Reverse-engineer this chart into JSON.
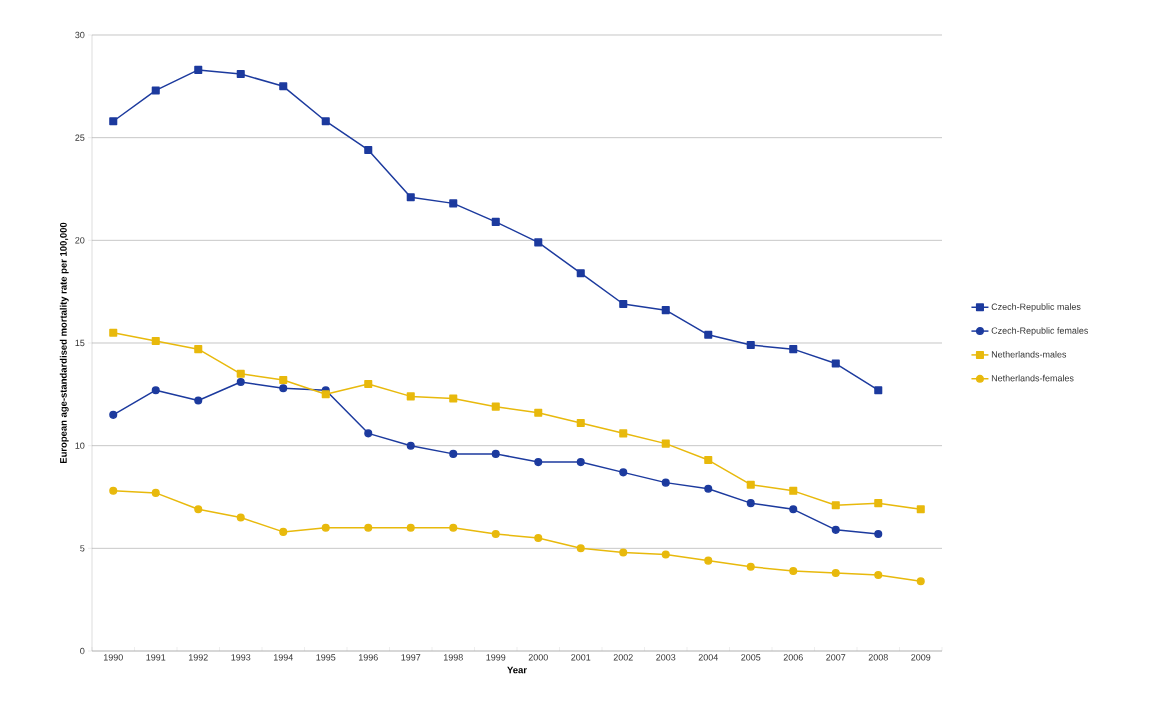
{
  "chart_data": {
    "type": "line",
    "xlabel": "Year",
    "ylabel": "European age-standardised mortality rate per 100,000",
    "categories": [
      "1990",
      "1991",
      "1992",
      "1993",
      "1994",
      "1995",
      "1996",
      "1997",
      "1998",
      "1999",
      "2000",
      "2001",
      "2002",
      "2003",
      "2004",
      "2005",
      "2006",
      "2007",
      "2008",
      "2009"
    ],
    "series": [
      {
        "name": "Czech-Republic males",
        "color": "#1c3a9e",
        "marker": "square",
        "values": [
          25.8,
          27.3,
          28.3,
          28.1,
          27.5,
          25.8,
          24.4,
          22.1,
          21.8,
          20.9,
          19.9,
          18.4,
          16.9,
          16.6,
          15.4,
          14.9,
          14.7,
          14.0,
          12.7,
          null
        ]
      },
      {
        "name": "Czech-Republic females",
        "color": "#1c3a9e",
        "marker": "circle",
        "values": [
          11.5,
          12.7,
          12.2,
          13.1,
          12.8,
          12.7,
          10.6,
          10.0,
          9.6,
          9.6,
          9.2,
          9.2,
          8.7,
          8.2,
          7.9,
          7.2,
          6.9,
          5.9,
          5.7,
          null
        ]
      },
      {
        "name": "Netherlands-males",
        "color": "#e8b90c",
        "marker": "square",
        "values": [
          15.5,
          15.1,
          14.7,
          13.5,
          13.2,
          12.5,
          13.0,
          12.4,
          12.3,
          11.9,
          11.6,
          11.1,
          10.6,
          10.1,
          9.3,
          8.1,
          7.8,
          7.1,
          7.2,
          6.9
        ]
      },
      {
        "name": "Netherlands-females",
        "color": "#e8b90c",
        "marker": "circle",
        "values": [
          7.8,
          7.7,
          6.9,
          6.5,
          5.8,
          6.0,
          6.0,
          6.0,
          6.0,
          5.7,
          5.5,
          5.0,
          4.8,
          4.7,
          4.4,
          4.1,
          3.9,
          3.8,
          3.7,
          3.4
        ]
      }
    ],
    "ylim": [
      0,
      30
    ],
    "yticks": [
      0,
      5,
      10,
      15,
      20,
      25,
      30
    ],
    "grid": "y",
    "legend": "right",
    "line_style": "solid"
  }
}
